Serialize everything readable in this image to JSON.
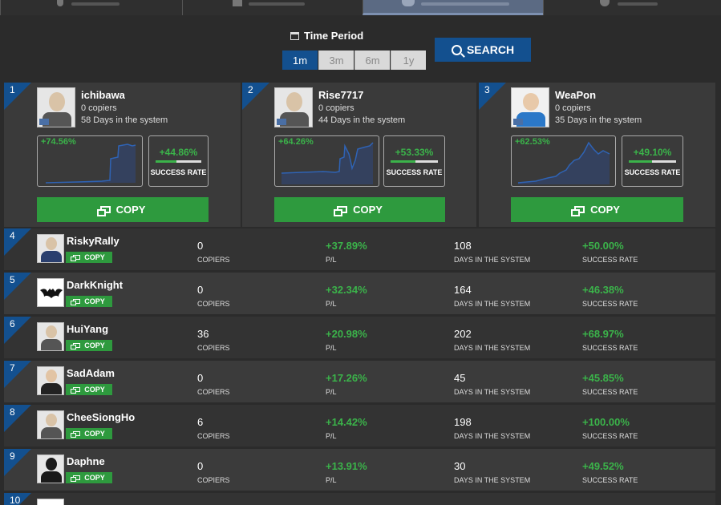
{
  "time_period": {
    "label": "Time Period",
    "options": [
      "1m",
      "3m",
      "6m",
      "1y"
    ],
    "selected": "1m"
  },
  "search": {
    "label": "SEARCH"
  },
  "labels": {
    "copy": "COPY",
    "success_rate": "SUCCESS RATE",
    "copiers": "COPIERS",
    "pl": "P/L",
    "days": "DAYS IN THE SYSTEM"
  },
  "top_traders": [
    {
      "rank": "1",
      "name": "ichibawa",
      "copiers": "0 copiers",
      "days": "58 Days in the system",
      "pl": "+74.56%",
      "success": "+44.86%",
      "success_fraction": 0.4486
    },
    {
      "rank": "2",
      "name": "Rise7717",
      "copiers": "0 copiers",
      "days": "44 Days in the system",
      "pl": "+64.26%",
      "success": "+53.33%",
      "success_fraction": 0.5333
    },
    {
      "rank": "3",
      "name": "WeaPon",
      "copiers": "0 copiers",
      "days": "35 Days in the system",
      "pl": "+62.53%",
      "success": "+49.10%",
      "success_fraction": 0.491
    }
  ],
  "traders": [
    {
      "rank": "4",
      "name": "RiskyRally",
      "copiers": "0",
      "pl": "+37.89%",
      "days": "108",
      "success": "+50.00%"
    },
    {
      "rank": "5",
      "name": "DarkKnight",
      "copiers": "0",
      "pl": "+32.34%",
      "days": "164",
      "success": "+46.38%"
    },
    {
      "rank": "6",
      "name": "HuiYang",
      "copiers": "36",
      "pl": "+20.98%",
      "days": "202",
      "success": "+68.97%"
    },
    {
      "rank": "7",
      "name": "SadAdam",
      "copiers": "0",
      "pl": "+17.26%",
      "days": "45",
      "success": "+45.85%"
    },
    {
      "rank": "8",
      "name": "CheeSiongHo",
      "copiers": "6",
      "pl": "+14.42%",
      "days": "198",
      "success": "+100.00%"
    },
    {
      "rank": "9",
      "name": "Daphne",
      "copiers": "0",
      "pl": "+13.91%",
      "days": "30",
      "success": "+49.52%"
    },
    {
      "rank": "10"
    }
  ],
  "colors": {
    "accent_blue": "#13508f",
    "green": "#2e9a3e",
    "positive_text": "#3bb34a",
    "background": "#2b2b2b"
  }
}
